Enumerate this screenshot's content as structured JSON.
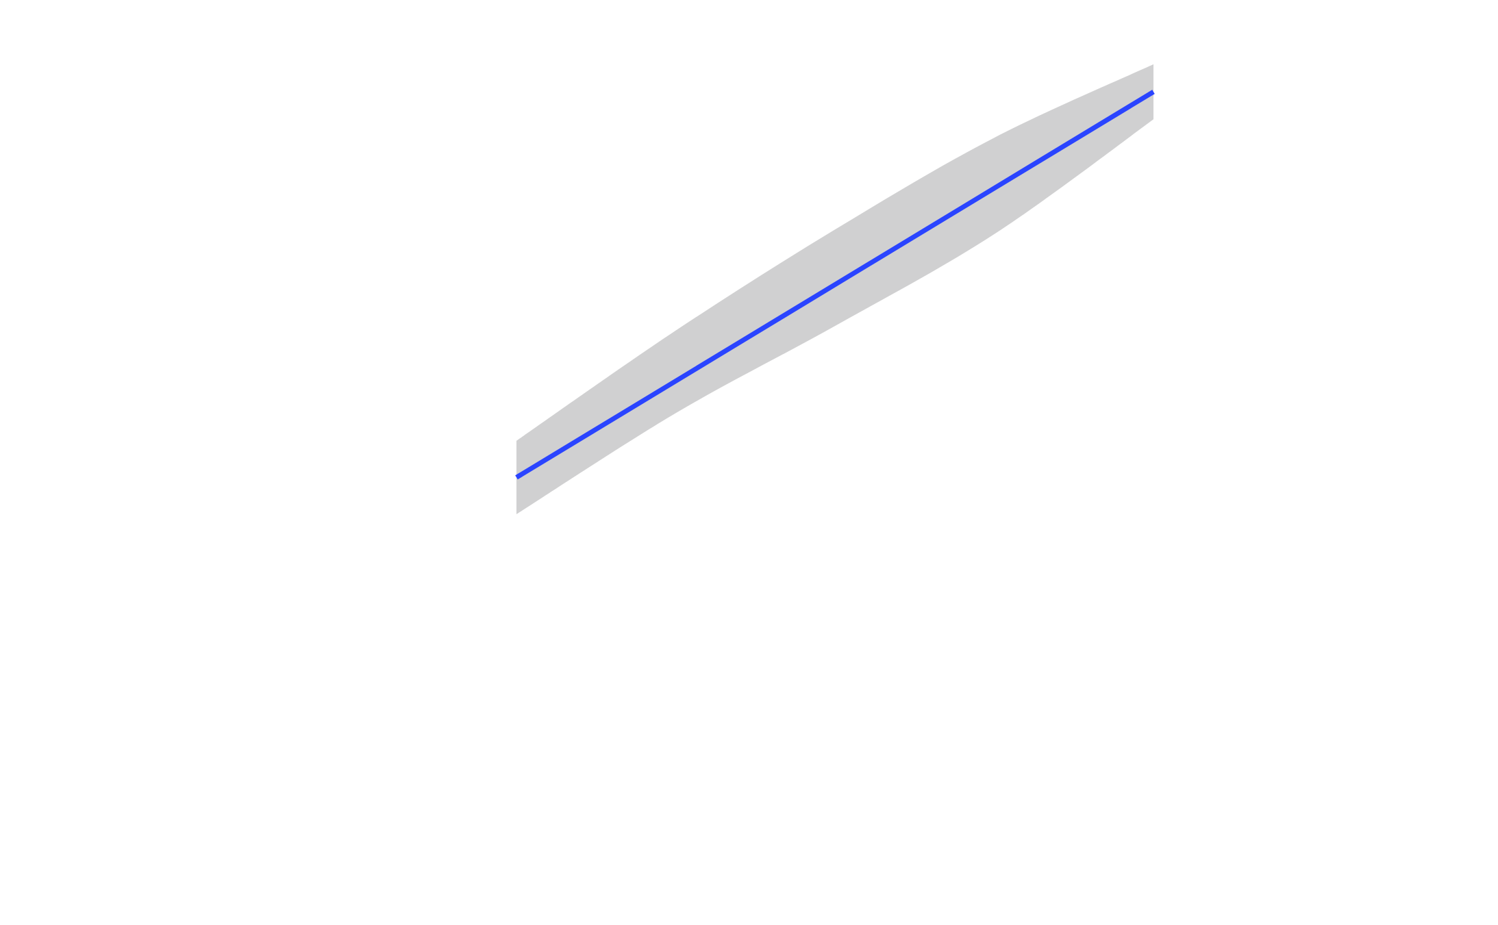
{
  "chart_data": {
    "type": "line",
    "title": "",
    "xlabel": "",
    "ylabel": "",
    "xlim": [
      0,
      1
    ],
    "ylim": [
      0,
      1
    ],
    "grid": false,
    "axes_visible": false,
    "series": [
      {
        "kind": "regression-line",
        "color": "#2a44ff",
        "x": [
          0,
          1
        ],
        "y": [
          0.48,
          0.9
        ]
      },
      {
        "kind": "confidence-band",
        "color": "#d0d0d1",
        "x": [
          0,
          0.25,
          0.5,
          0.75,
          1
        ],
        "upper": [
          0.52,
          0.64,
          0.75,
          0.85,
          0.93
        ],
        "lower": [
          0.44,
          0.55,
          0.645,
          0.745,
          0.87
        ]
      }
    ]
  }
}
